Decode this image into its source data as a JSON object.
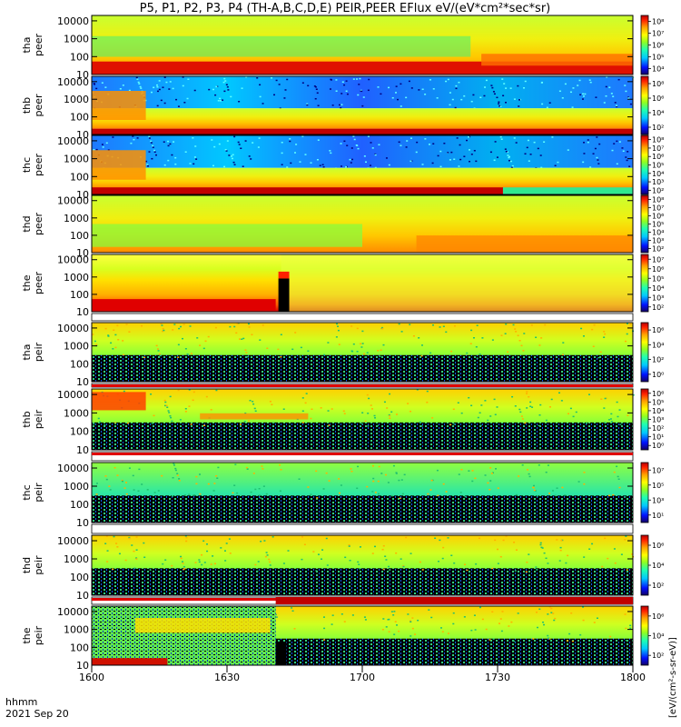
{
  "title": "P5, P1, P2, P3, P4 (TH-A,B,C,D,E) PEIR,PEER EFlux eV/(eV*cm²*sec*sr)",
  "footer": {
    "line1": "hhmm",
    "line2": "2021 Sep 20"
  },
  "x_ticks": [
    "1600",
    "1630",
    "1700",
    "1730",
    "1800"
  ],
  "colorbar_unit": "[eV/(cm²-s-sr-eV)]",
  "chart_data": {
    "type": "heatmap",
    "x_range": [
      "16:00",
      "18:00"
    ],
    "y_scale": "log",
    "ylim": [
      10,
      20000
    ],
    "y_ticks": [
      "10",
      "100",
      "1000",
      "10000"
    ],
    "panels": [
      {
        "label": "tha peer",
        "line1": "tha",
        "line2": "peer",
        "cb_ticks": [
          "10⁴",
          "10⁵",
          "10⁶",
          "10⁷",
          "10⁸"
        ],
        "cb_range_exp": [
          3.5,
          8.3
        ]
      },
      {
        "label": "thb peer",
        "line1": "thb",
        "line2": "peer",
        "cb_ticks": [
          "10²",
          "10⁴",
          "10⁶",
          "10⁸"
        ],
        "cb_range_exp": [
          1.5,
          8.5
        ]
      },
      {
        "label": "thc peer",
        "line1": "thc",
        "line2": "peer",
        "cb_ticks": [
          "10²",
          "10³",
          "10⁴",
          "10⁵",
          "10⁶",
          "10⁷",
          "10⁸"
        ],
        "cb_range_exp": [
          1.5,
          8.5
        ]
      },
      {
        "label": "thd peer",
        "line1": "thd",
        "line2": "peer",
        "cb_ticks": [
          "10²",
          "10³",
          "10⁴",
          "10⁵",
          "10⁶",
          "10⁷",
          "10⁸"
        ],
        "cb_range_exp": [
          1.5,
          8.5
        ]
      },
      {
        "label": "the peer",
        "line1": "the",
        "line2": "peer",
        "cb_ticks": [
          "10²",
          "10³",
          "10⁴",
          "10⁵",
          "10⁶",
          "10⁷"
        ],
        "cb_range_exp": [
          1.5,
          7.8
        ]
      },
      {
        "label": "tha peir",
        "line1": "tha",
        "line2": "peir",
        "cb_ticks": [
          "10⁰",
          "10²",
          "10⁴",
          "10⁶"
        ],
        "cb_range_exp": [
          -0.5,
          7.5
        ]
      },
      {
        "label": "thb peir",
        "line1": "thb",
        "line2": "peir",
        "cb_ticks": [
          "10⁰",
          "10¹",
          "10²",
          "10³",
          "10⁴",
          "10⁵",
          "10⁶"
        ],
        "cb_range_exp": [
          -0.5,
          7.0
        ]
      },
      {
        "label": "thc peir",
        "line1": "thc",
        "line2": "peir",
        "cb_ticks": [
          "10¹",
          "10³",
          "10⁵",
          "10⁷"
        ],
        "cb_range_exp": [
          0.5,
          7.5
        ]
      },
      {
        "label": "thd peir",
        "line1": "thd",
        "line2": "peir",
        "cb_ticks": [
          "10²",
          "10⁴",
          "10⁶"
        ],
        "cb_range_exp": [
          1.0,
          7.5
        ]
      },
      {
        "label": "the peir",
        "line1": "the",
        "line2": "peir",
        "cb_ticks": [
          "10²",
          "10⁴",
          "10⁶"
        ],
        "cb_range_exp": [
          1.0,
          7.5
        ]
      }
    ]
  },
  "colors": {
    "colormap": [
      "#1a0a8c",
      "#0030ff",
      "#00b4ff",
      "#20ffb0",
      "#8cff30",
      "#ffff00",
      "#ffb000",
      "#ff4000",
      "#c80000"
    ]
  }
}
